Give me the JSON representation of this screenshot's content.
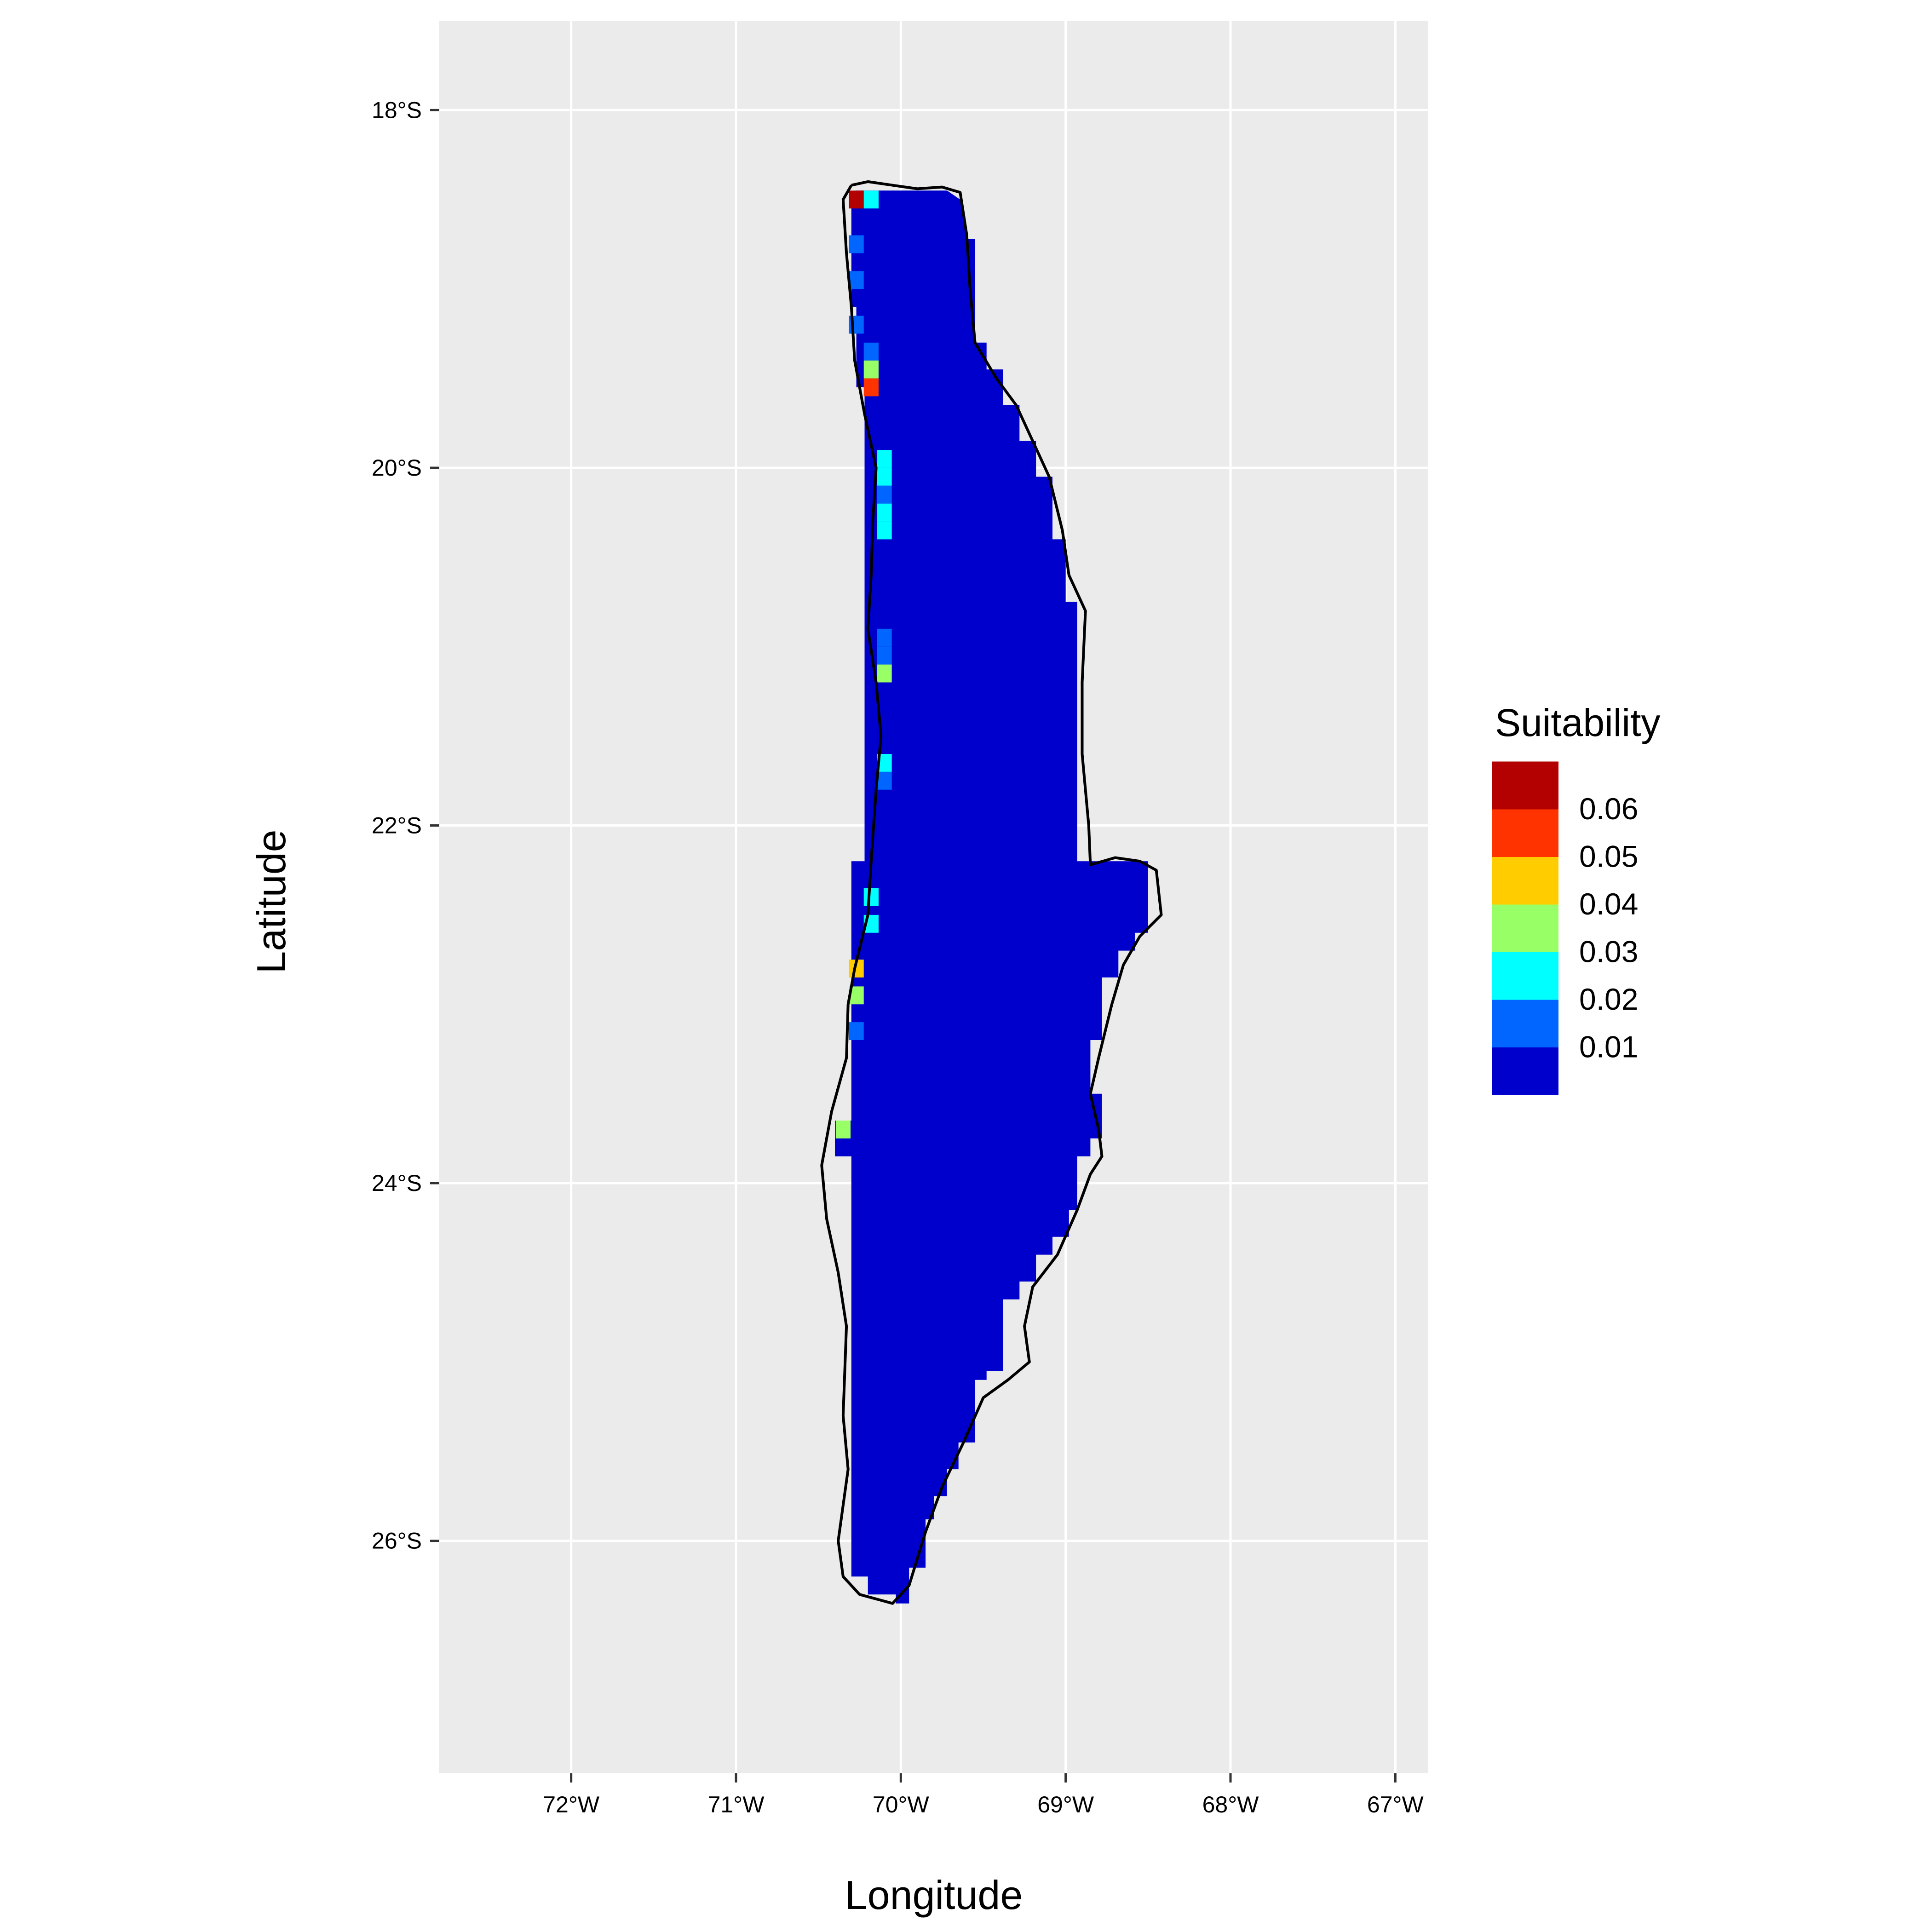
{
  "chart_data": {
    "type": "heatmap",
    "title": "",
    "xlabel": "Longitude",
    "ylabel": "Latitude",
    "xlim": [
      -72.8,
      -66.8
    ],
    "ylim": [
      -27.3,
      -17.5
    ],
    "grid": true,
    "background": "#EBEBEB",
    "x_ticks": [
      {
        "value": -72,
        "label": "72°W"
      },
      {
        "value": -71,
        "label": "71°W"
      },
      {
        "value": -70,
        "label": "70°W"
      },
      {
        "value": -69,
        "label": "69°W"
      },
      {
        "value": -68,
        "label": "68°W"
      },
      {
        "value": -67,
        "label": "67°W"
      }
    ],
    "y_ticks": [
      {
        "value": -18,
        "label": "18°S"
      },
      {
        "value": -20,
        "label": "20°S"
      },
      {
        "value": -22,
        "label": "22°S"
      },
      {
        "value": -24,
        "label": "24°S"
      },
      {
        "value": -26,
        "label": "26°S"
      }
    ],
    "legend": {
      "title": "Suitability",
      "position": "right",
      "bins": [
        {
          "color": "#0000CD",
          "label": "0.01"
        },
        {
          "color": "#0066FF",
          "label": "0.02"
        },
        {
          "color": "#00FFFF",
          "label": "0.03"
        },
        {
          "color": "#99FF66",
          "label": "0.04"
        },
        {
          "color": "#FFCC00",
          "label": "0.05"
        },
        {
          "color": "#FF3300",
          "label": "0.06"
        },
        {
          "color": "#B30000",
          "label": ""
        }
      ]
    },
    "region_fill": {
      "value_bin": "0.01",
      "color": "#0000CD",
      "polygon": [
        [
          -70.27,
          -18.45
        ],
        [
          -69.72,
          -18.45
        ],
        [
          -69.64,
          -18.5
        ],
        [
          -69.6,
          -18.72
        ],
        [
          -69.55,
          -18.72
        ],
        [
          -69.55,
          -19.3
        ],
        [
          -69.48,
          -19.3
        ],
        [
          -69.48,
          -19.45
        ],
        [
          -69.38,
          -19.45
        ],
        [
          -69.38,
          -19.65
        ],
        [
          -69.28,
          -19.65
        ],
        [
          -69.28,
          -19.85
        ],
        [
          -69.18,
          -19.85
        ],
        [
          -69.18,
          -20.05
        ],
        [
          -69.08,
          -20.05
        ],
        [
          -69.08,
          -20.4
        ],
        [
          -69.0,
          -20.4
        ],
        [
          -69.0,
          -20.75
        ],
        [
          -68.93,
          -20.75
        ],
        [
          -68.93,
          -22.2
        ],
        [
          -68.5,
          -22.2
        ],
        [
          -68.5,
          -22.6
        ],
        [
          -68.58,
          -22.6
        ],
        [
          -68.58,
          -22.7
        ],
        [
          -68.68,
          -22.7
        ],
        [
          -68.68,
          -22.85
        ],
        [
          -68.78,
          -22.85
        ],
        [
          -68.78,
          -23.2
        ],
        [
          -68.85,
          -23.2
        ],
        [
          -68.85,
          -23.5
        ],
        [
          -68.78,
          -23.5
        ],
        [
          -68.78,
          -23.75
        ],
        [
          -68.85,
          -23.75
        ],
        [
          -68.85,
          -23.85
        ],
        [
          -68.93,
          -23.85
        ],
        [
          -68.93,
          -24.15
        ],
        [
          -68.98,
          -24.15
        ],
        [
          -68.98,
          -24.3
        ],
        [
          -69.08,
          -24.3
        ],
        [
          -69.08,
          -24.4
        ],
        [
          -69.18,
          -24.4
        ],
        [
          -69.18,
          -24.55
        ],
        [
          -69.28,
          -24.55
        ],
        [
          -69.28,
          -24.65
        ],
        [
          -69.38,
          -24.65
        ],
        [
          -69.38,
          -25.05
        ],
        [
          -69.48,
          -25.05
        ],
        [
          -69.48,
          -25.1
        ],
        [
          -69.55,
          -25.1
        ],
        [
          -69.55,
          -25.45
        ],
        [
          -69.65,
          -25.45
        ],
        [
          -69.65,
          -25.6
        ],
        [
          -69.72,
          -25.6
        ],
        [
          -69.72,
          -25.75
        ],
        [
          -69.8,
          -25.75
        ],
        [
          -69.8,
          -25.88
        ],
        [
          -69.85,
          -25.88
        ],
        [
          -69.85,
          -26.15
        ],
        [
          -69.95,
          -26.15
        ],
        [
          -69.95,
          -26.35
        ],
        [
          -70.03,
          -26.35
        ],
        [
          -70.03,
          -26.3
        ],
        [
          -70.2,
          -26.3
        ],
        [
          -70.2,
          -26.2
        ],
        [
          -70.3,
          -26.2
        ],
        [
          -70.3,
          -23.85
        ],
        [
          -70.4,
          -23.85
        ],
        [
          -70.4,
          -23.65
        ],
        [
          -70.3,
          -23.65
        ],
        [
          -70.3,
          -22.2
        ],
        [
          -70.22,
          -22.2
        ],
        [
          -70.22,
          -19.55
        ],
        [
          -70.27,
          -19.55
        ],
        [
          -70.27,
          -19.1
        ],
        [
          -70.3,
          -19.1
        ],
        [
          -70.3,
          -18.55
        ]
      ]
    },
    "cells": [
      {
        "lon": -70.27,
        "lat": -18.5,
        "bin": "0.06+"
      },
      {
        "lon": -70.18,
        "lat": -18.5,
        "bin": "0.03"
      },
      {
        "lon": -70.27,
        "lat": -18.75,
        "bin": "0.02"
      },
      {
        "lon": -70.27,
        "lat": -18.95,
        "bin": "0.02"
      },
      {
        "lon": -70.27,
        "lat": -19.2,
        "bin": "0.02"
      },
      {
        "lon": -70.18,
        "lat": -19.35,
        "bin": "0.02"
      },
      {
        "lon": -70.18,
        "lat": -19.45,
        "bin": "0.04"
      },
      {
        "lon": -70.18,
        "lat": -19.55,
        "bin": "0.06"
      },
      {
        "lon": -70.1,
        "lat": -19.95,
        "bin": "0.03"
      },
      {
        "lon": -70.1,
        "lat": -20.05,
        "bin": "0.03"
      },
      {
        "lon": -70.1,
        "lat": -20.15,
        "bin": "0.02"
      },
      {
        "lon": -70.1,
        "lat": -20.25,
        "bin": "0.03"
      },
      {
        "lon": -70.1,
        "lat": -20.35,
        "bin": "0.03"
      },
      {
        "lon": -70.1,
        "lat": -20.95,
        "bin": "0.02"
      },
      {
        "lon": -70.1,
        "lat": -21.05,
        "bin": "0.02"
      },
      {
        "lon": -70.1,
        "lat": -21.15,
        "bin": "0.04"
      },
      {
        "lon": -70.1,
        "lat": -21.65,
        "bin": "0.03"
      },
      {
        "lon": -70.1,
        "lat": -21.75,
        "bin": "0.02"
      },
      {
        "lon": -70.18,
        "lat": -22.4,
        "bin": "0.03"
      },
      {
        "lon": -70.18,
        "lat": -22.55,
        "bin": "0.03"
      },
      {
        "lon": -70.27,
        "lat": -22.8,
        "bin": "0.05"
      },
      {
        "lon": -70.27,
        "lat": -22.95,
        "bin": "0.04"
      },
      {
        "lon": -70.27,
        "lat": -23.15,
        "bin": "0.02"
      },
      {
        "lon": -70.35,
        "lat": -23.7,
        "bin": "0.04"
      }
    ],
    "boundary": [
      [
        -70.3,
        -18.42
      ],
      [
        -70.2,
        -18.4
      ],
      [
        -70.05,
        -18.42
      ],
      [
        -69.9,
        -18.44
      ],
      [
        -69.75,
        -18.43
      ],
      [
        -69.64,
        -18.46
      ],
      [
        -69.6,
        -18.7
      ],
      [
        -69.58,
        -19.0
      ],
      [
        -69.55,
        -19.3
      ],
      [
        -69.42,
        -19.5
      ],
      [
        -69.3,
        -19.65
      ],
      [
        -69.2,
        -19.85
      ],
      [
        -69.1,
        -20.05
      ],
      [
        -69.02,
        -20.35
      ],
      [
        -68.98,
        -20.6
      ],
      [
        -68.88,
        -20.8
      ],
      [
        -68.9,
        -21.2
      ],
      [
        -68.9,
        -21.6
      ],
      [
        -68.86,
        -22.0
      ],
      [
        -68.85,
        -22.22
      ],
      [
        -68.7,
        -22.18
      ],
      [
        -68.55,
        -22.2
      ],
      [
        -68.45,
        -22.25
      ],
      [
        -68.42,
        -22.5
      ],
      [
        -68.55,
        -22.62
      ],
      [
        -68.65,
        -22.78
      ],
      [
        -68.72,
        -23.0
      ],
      [
        -68.8,
        -23.3
      ],
      [
        -68.85,
        -23.5
      ],
      [
        -68.8,
        -23.7
      ],
      [
        -68.78,
        -23.85
      ],
      [
        -68.85,
        -23.95
      ],
      [
        -68.93,
        -24.15
      ],
      [
        -69.05,
        -24.4
      ],
      [
        -69.2,
        -24.58
      ],
      [
        -69.25,
        -24.8
      ],
      [
        -69.22,
        -25.0
      ],
      [
        -69.35,
        -25.1
      ],
      [
        -69.5,
        -25.2
      ],
      [
        -69.62,
        -25.45
      ],
      [
        -69.75,
        -25.7
      ],
      [
        -69.85,
        -25.95
      ],
      [
        -69.95,
        -26.25
      ],
      [
        -70.05,
        -26.35
      ],
      [
        -70.25,
        -26.3
      ],
      [
        -70.35,
        -26.2
      ],
      [
        -70.38,
        -26.0
      ],
      [
        -70.32,
        -25.6
      ],
      [
        -70.35,
        -25.3
      ],
      [
        -70.33,
        -24.8
      ],
      [
        -70.38,
        -24.5
      ],
      [
        -70.45,
        -24.2
      ],
      [
        -70.48,
        -23.9
      ],
      [
        -70.42,
        -23.6
      ],
      [
        -70.33,
        -23.3
      ],
      [
        -70.32,
        -23.0
      ],
      [
        -70.28,
        -22.8
      ],
      [
        -70.2,
        -22.5
      ],
      [
        -70.18,
        -22.2
      ],
      [
        -70.15,
        -21.8
      ],
      [
        -70.12,
        -21.5
      ],
      [
        -70.15,
        -21.2
      ],
      [
        -70.2,
        -20.9
      ],
      [
        -70.18,
        -20.6
      ],
      [
        -70.17,
        -20.3
      ],
      [
        -70.15,
        -20.0
      ],
      [
        -70.22,
        -19.7
      ],
      [
        -70.28,
        -19.4
      ],
      [
        -70.3,
        -19.1
      ],
      [
        -70.33,
        -18.8
      ],
      [
        -70.35,
        -18.5
      ],
      [
        -70.3,
        -18.42
      ]
    ]
  }
}
